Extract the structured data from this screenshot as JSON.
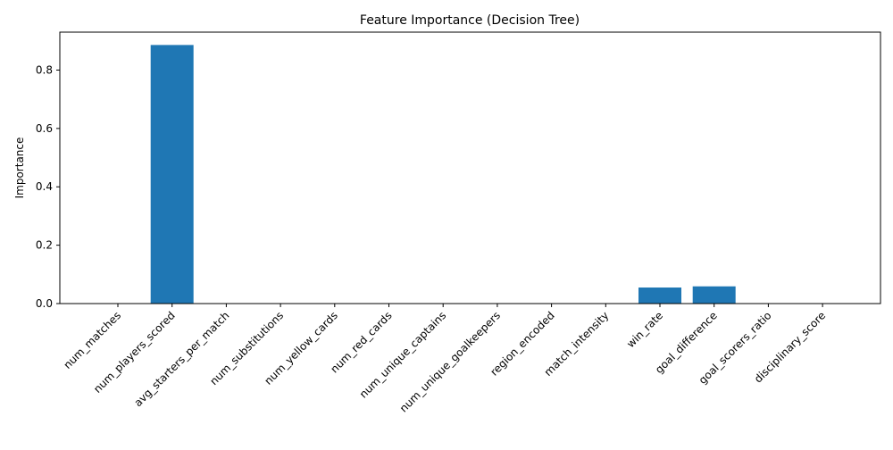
{
  "chart_data": {
    "type": "bar",
    "title": "Feature Importance (Decision Tree)",
    "xlabel": "",
    "ylabel": "Importance",
    "ylim": [
      0,
      0.93
    ],
    "yticks": [
      0.0,
      0.2,
      0.4,
      0.6,
      0.8
    ],
    "ytick_labels": [
      "0.0",
      "0.2",
      "0.4",
      "0.6",
      "0.8"
    ],
    "grid": false,
    "bar_color": "#1f77b4",
    "categories": [
      "num_matches",
      "num_players_scored",
      "avg_starters_per_match",
      "num_substitutions",
      "num_yellow_cards",
      "num_red_cards",
      "num_unique_captains",
      "num_unique_goalkeepers",
      "region_encoded",
      "match_intensity",
      "win_rate",
      "goal_difference",
      "goal_scorers_ratio",
      "disciplinary_score"
    ],
    "values": [
      0.0,
      0.886,
      0.0,
      0.0,
      0.0,
      0.0,
      0.0,
      0.0,
      0.0,
      0.0,
      0.055,
      0.059,
      0.0,
      0.0
    ]
  }
}
